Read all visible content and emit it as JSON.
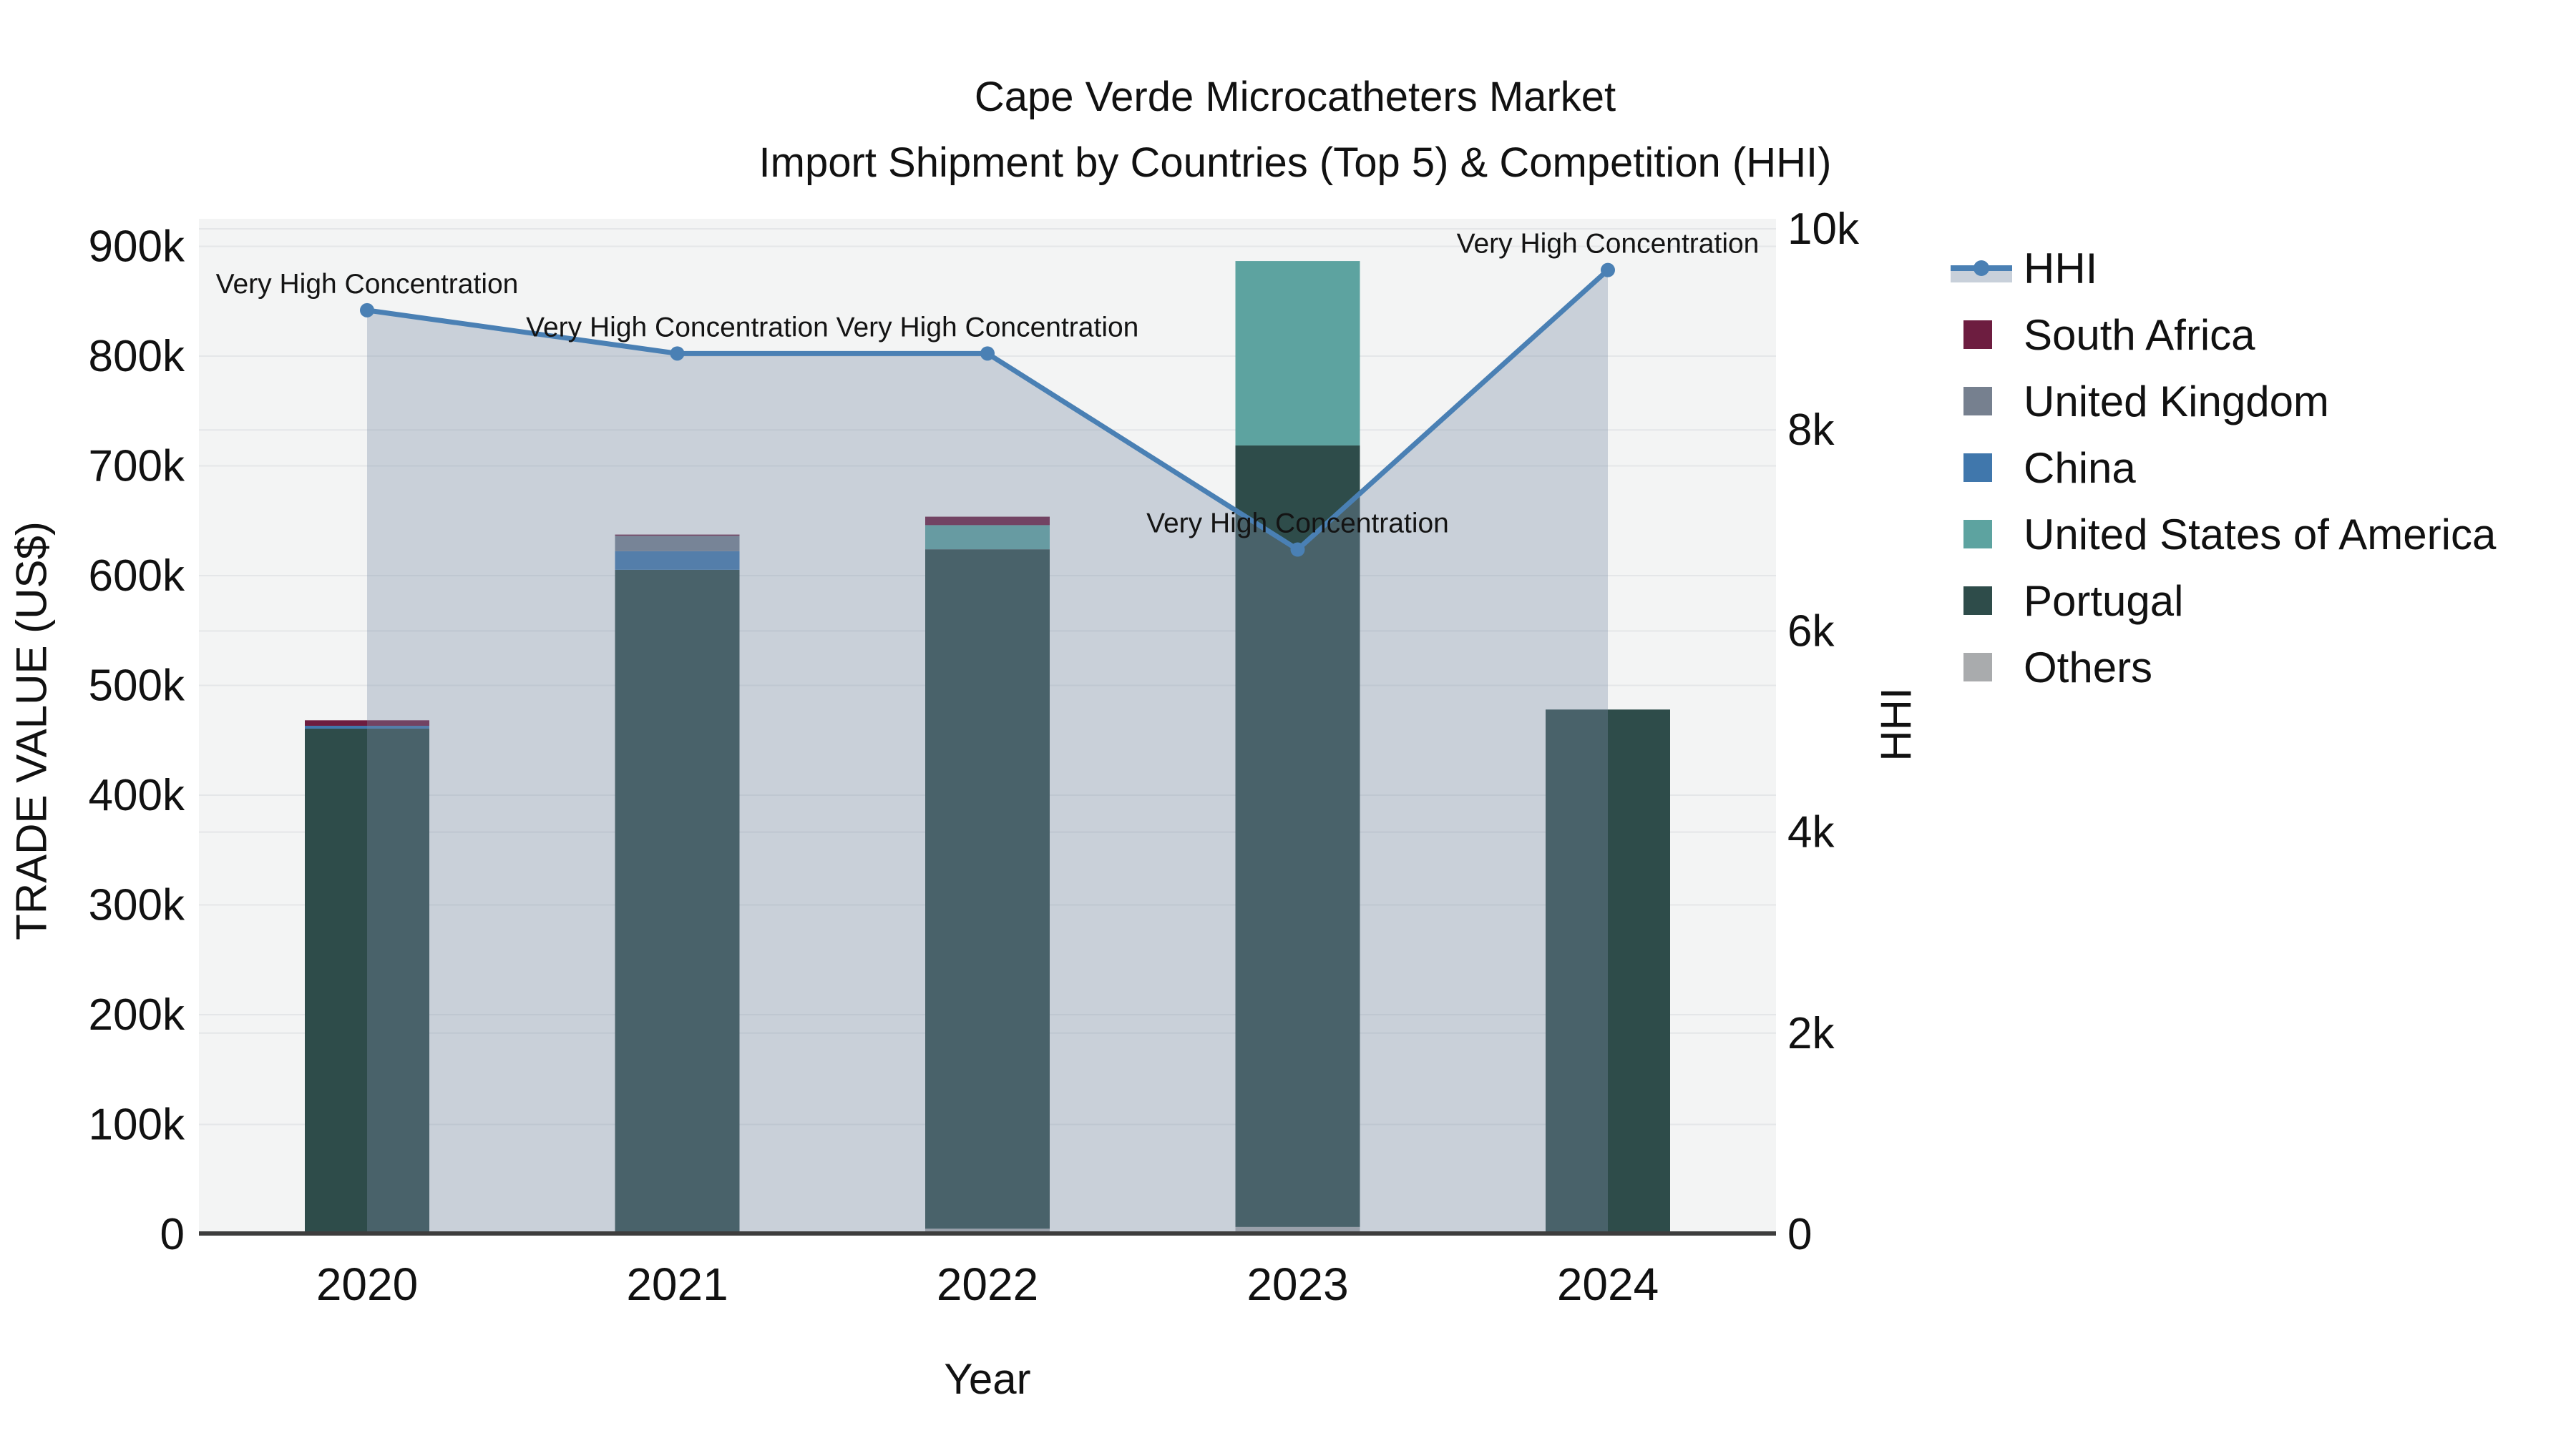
{
  "title": {
    "line1": "Cape Verde Microcatheters Market",
    "line2": "Import Shipment by Countries (Top 5) & Competition (HHI)"
  },
  "axes": {
    "x": {
      "title": "Year",
      "categories": [
        "2020",
        "2021",
        "2022",
        "2023",
        "2024"
      ]
    },
    "y_left": {
      "title": "TRADE VALUE (US$)",
      "ticks": [
        {
          "value": 0,
          "label": "0"
        },
        {
          "value": 100000,
          "label": "100k"
        },
        {
          "value": 200000,
          "label": "200k"
        },
        {
          "value": 300000,
          "label": "300k"
        },
        {
          "value": 400000,
          "label": "400k"
        },
        {
          "value": 500000,
          "label": "500k"
        },
        {
          "value": 600000,
          "label": "600k"
        },
        {
          "value": 700000,
          "label": "700k"
        },
        {
          "value": 800000,
          "label": "800k"
        },
        {
          "value": 900000,
          "label": "900k"
        }
      ]
    },
    "y_right": {
      "title": "HHI",
      "ticks": [
        {
          "value": 0,
          "label": "0"
        },
        {
          "value": 2000,
          "label": "2k"
        },
        {
          "value": 4000,
          "label": "4k"
        },
        {
          "value": 6000,
          "label": "6k"
        },
        {
          "value": 8000,
          "label": "8k"
        },
        {
          "value": 10000,
          "label": "10k"
        }
      ]
    }
  },
  "legend": {
    "items": [
      {
        "label": "HHI",
        "type": "line",
        "color": "#4a80b4",
        "band": "#c8d0da"
      },
      {
        "label": "South Africa",
        "type": "swatch",
        "color": "#6d1d40"
      },
      {
        "label": "United Kingdom",
        "type": "swatch",
        "color": "#76808f"
      },
      {
        "label": "China",
        "type": "swatch",
        "color": "#4077ac"
      },
      {
        "label": "United States of America",
        "type": "swatch",
        "color": "#5da3a0"
      },
      {
        "label": "Portugal",
        "type": "swatch",
        "color": "#2e4c4a"
      },
      {
        "label": "Others",
        "type": "swatch",
        "color": "#a9abad"
      }
    ]
  },
  "chart_data": {
    "type": "bar+line",
    "title": "Cape Verde Microcatheters Market — Import Shipment by Countries (Top 5) & Competition (HHI)",
    "xlabel": "Year",
    "ylabel_left": "TRADE VALUE (US$)",
    "ylabel_right": "HHI",
    "ylim_left": [
      0,
      900000
    ],
    "ylim_right": [
      0,
      10000
    ],
    "grid": true,
    "legend_position": "right",
    "categories": [
      "2020",
      "2021",
      "2022",
      "2023",
      "2024"
    ],
    "stack_order_bottom_to_top": [
      "Others",
      "Portugal",
      "United States of America",
      "China",
      "United Kingdom",
      "South Africa"
    ],
    "series": [
      {
        "name": "Others",
        "color": "#a9abad",
        "values": [
          2600,
          1300,
          5000,
          6600,
          0
        ]
      },
      {
        "name": "Portugal",
        "color": "#2e4c4a",
        "values": [
          458000,
          604000,
          619000,
          712000,
          478000
        ]
      },
      {
        "name": "United States of America",
        "color": "#5da3a0",
        "values": [
          0,
          0,
          22000,
          168000,
          0
        ]
      },
      {
        "name": "China",
        "color": "#4077ac",
        "values": [
          2600,
          17000,
          0,
          0,
          0
        ]
      },
      {
        "name": "United Kingdom",
        "color": "#76808f",
        "values": [
          0,
          14000,
          0,
          0,
          0
        ]
      },
      {
        "name": "South Africa",
        "color": "#6d1d40",
        "values": [
          5000,
          1100,
          7700,
          0,
          0
        ]
      }
    ],
    "bar_totals": [
      468200,
      637400,
      653700,
      886600,
      478000
    ],
    "line_series": {
      "name": "HHI",
      "axis": "right",
      "color": "#4a80b4",
      "area_fill": "rgba(124,140,166,0.35)",
      "values": [
        9190,
        8760,
        8760,
        6810,
        9590
      ]
    },
    "annotations": [
      {
        "text": "Very High Concentration",
        "x": "2020"
      },
      {
        "text": "Very High Concentration",
        "x": "2021"
      },
      {
        "text": "Very High Concentration",
        "x": "2022"
      },
      {
        "text": "Very High Concentration",
        "x": "2023"
      },
      {
        "text": "Very High Concentration",
        "x": "2024"
      }
    ],
    "colors": {
      "plot_background": "#f3f4f4",
      "gridline": "#e4e6e8",
      "x_axis_line": "#3d3d3d",
      "text": "#141414"
    }
  }
}
